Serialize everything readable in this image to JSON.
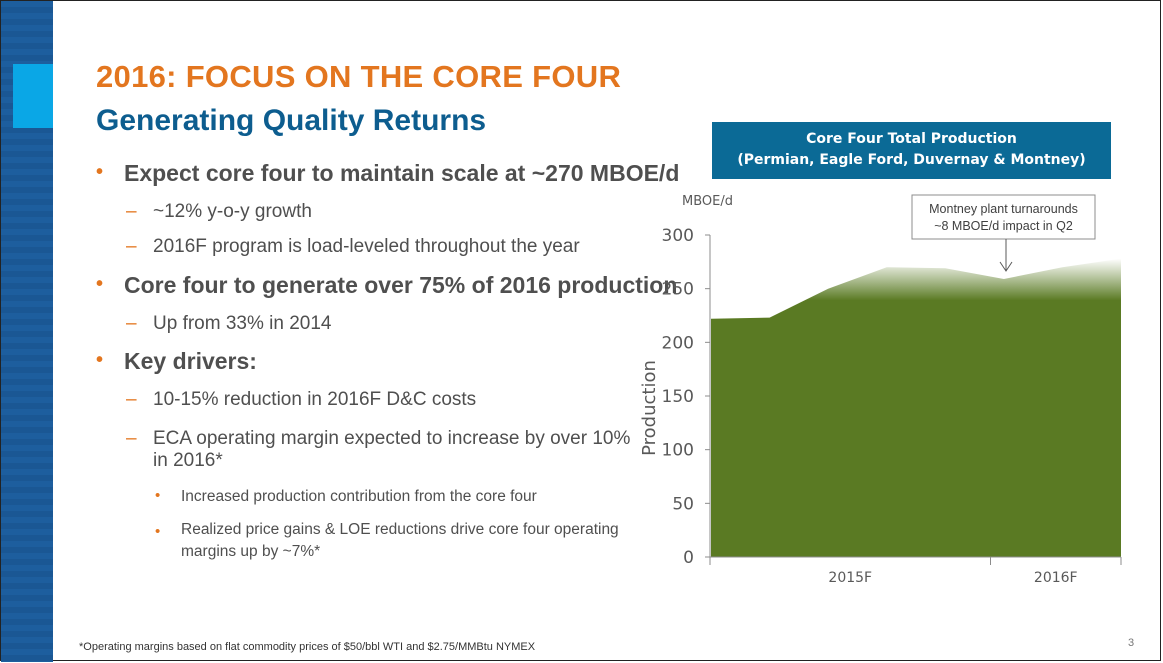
{
  "slide": {
    "title": "2016: FOCUS ON THE CORE FOUR",
    "subtitle": "Generating Quality Returns",
    "bullets": {
      "b1": "Expect core four to maintain scale at ~270 MBOE/d",
      "b1_1": "~12%  y-o-y growth",
      "b1_2": "2016F program is load-leveled throughout the year",
      "b2": "Core four to generate over 75% of 2016 production",
      "b2_1": "Up from 33%  in 2014",
      "b3": "Key drivers:",
      "b3_1": "10-15%  reduction in 2016F D&C costs",
      "b3_2a": "ECA operating margin expected to increase by over 10%",
      "b3_2b": "in 2016*",
      "b3_2_1": "Increased production contribution from the core four",
      "b3_2_2a": "Realized price gains & LOE reductions drive core four operating",
      "b3_2_2b": "margins up by ~7%*"
    },
    "footnote": "*Operating margins based on flat commodity prices of $50/bbl WTI and $2.75/MMBtu NYMEX",
    "page_number": "3"
  },
  "chart_header": {
    "line1": "Core Four Total Production",
    "line2": "(Permian, Eagle Ford, Duvernay & Montney)"
  },
  "chart_data": {
    "type": "area",
    "unit_label": "MBOE/d",
    "ylabel": "Production",
    "ylim": [
      0,
      300
    ],
    "yticks": [
      "0",
      "50",
      "100",
      "150",
      "200",
      "250",
      "300"
    ],
    "categories": [
      "2015F",
      "2016F"
    ],
    "x": [
      1,
      2,
      3,
      4,
      5,
      6,
      7,
      8
    ],
    "values": [
      222,
      223,
      250,
      270,
      269,
      259,
      270,
      278
    ],
    "fill_color": "#5a7a23",
    "annotation": {
      "line1": "Montney plant turnarounds",
      "line2": "~8 MBOE/d impact in Q2"
    }
  }
}
